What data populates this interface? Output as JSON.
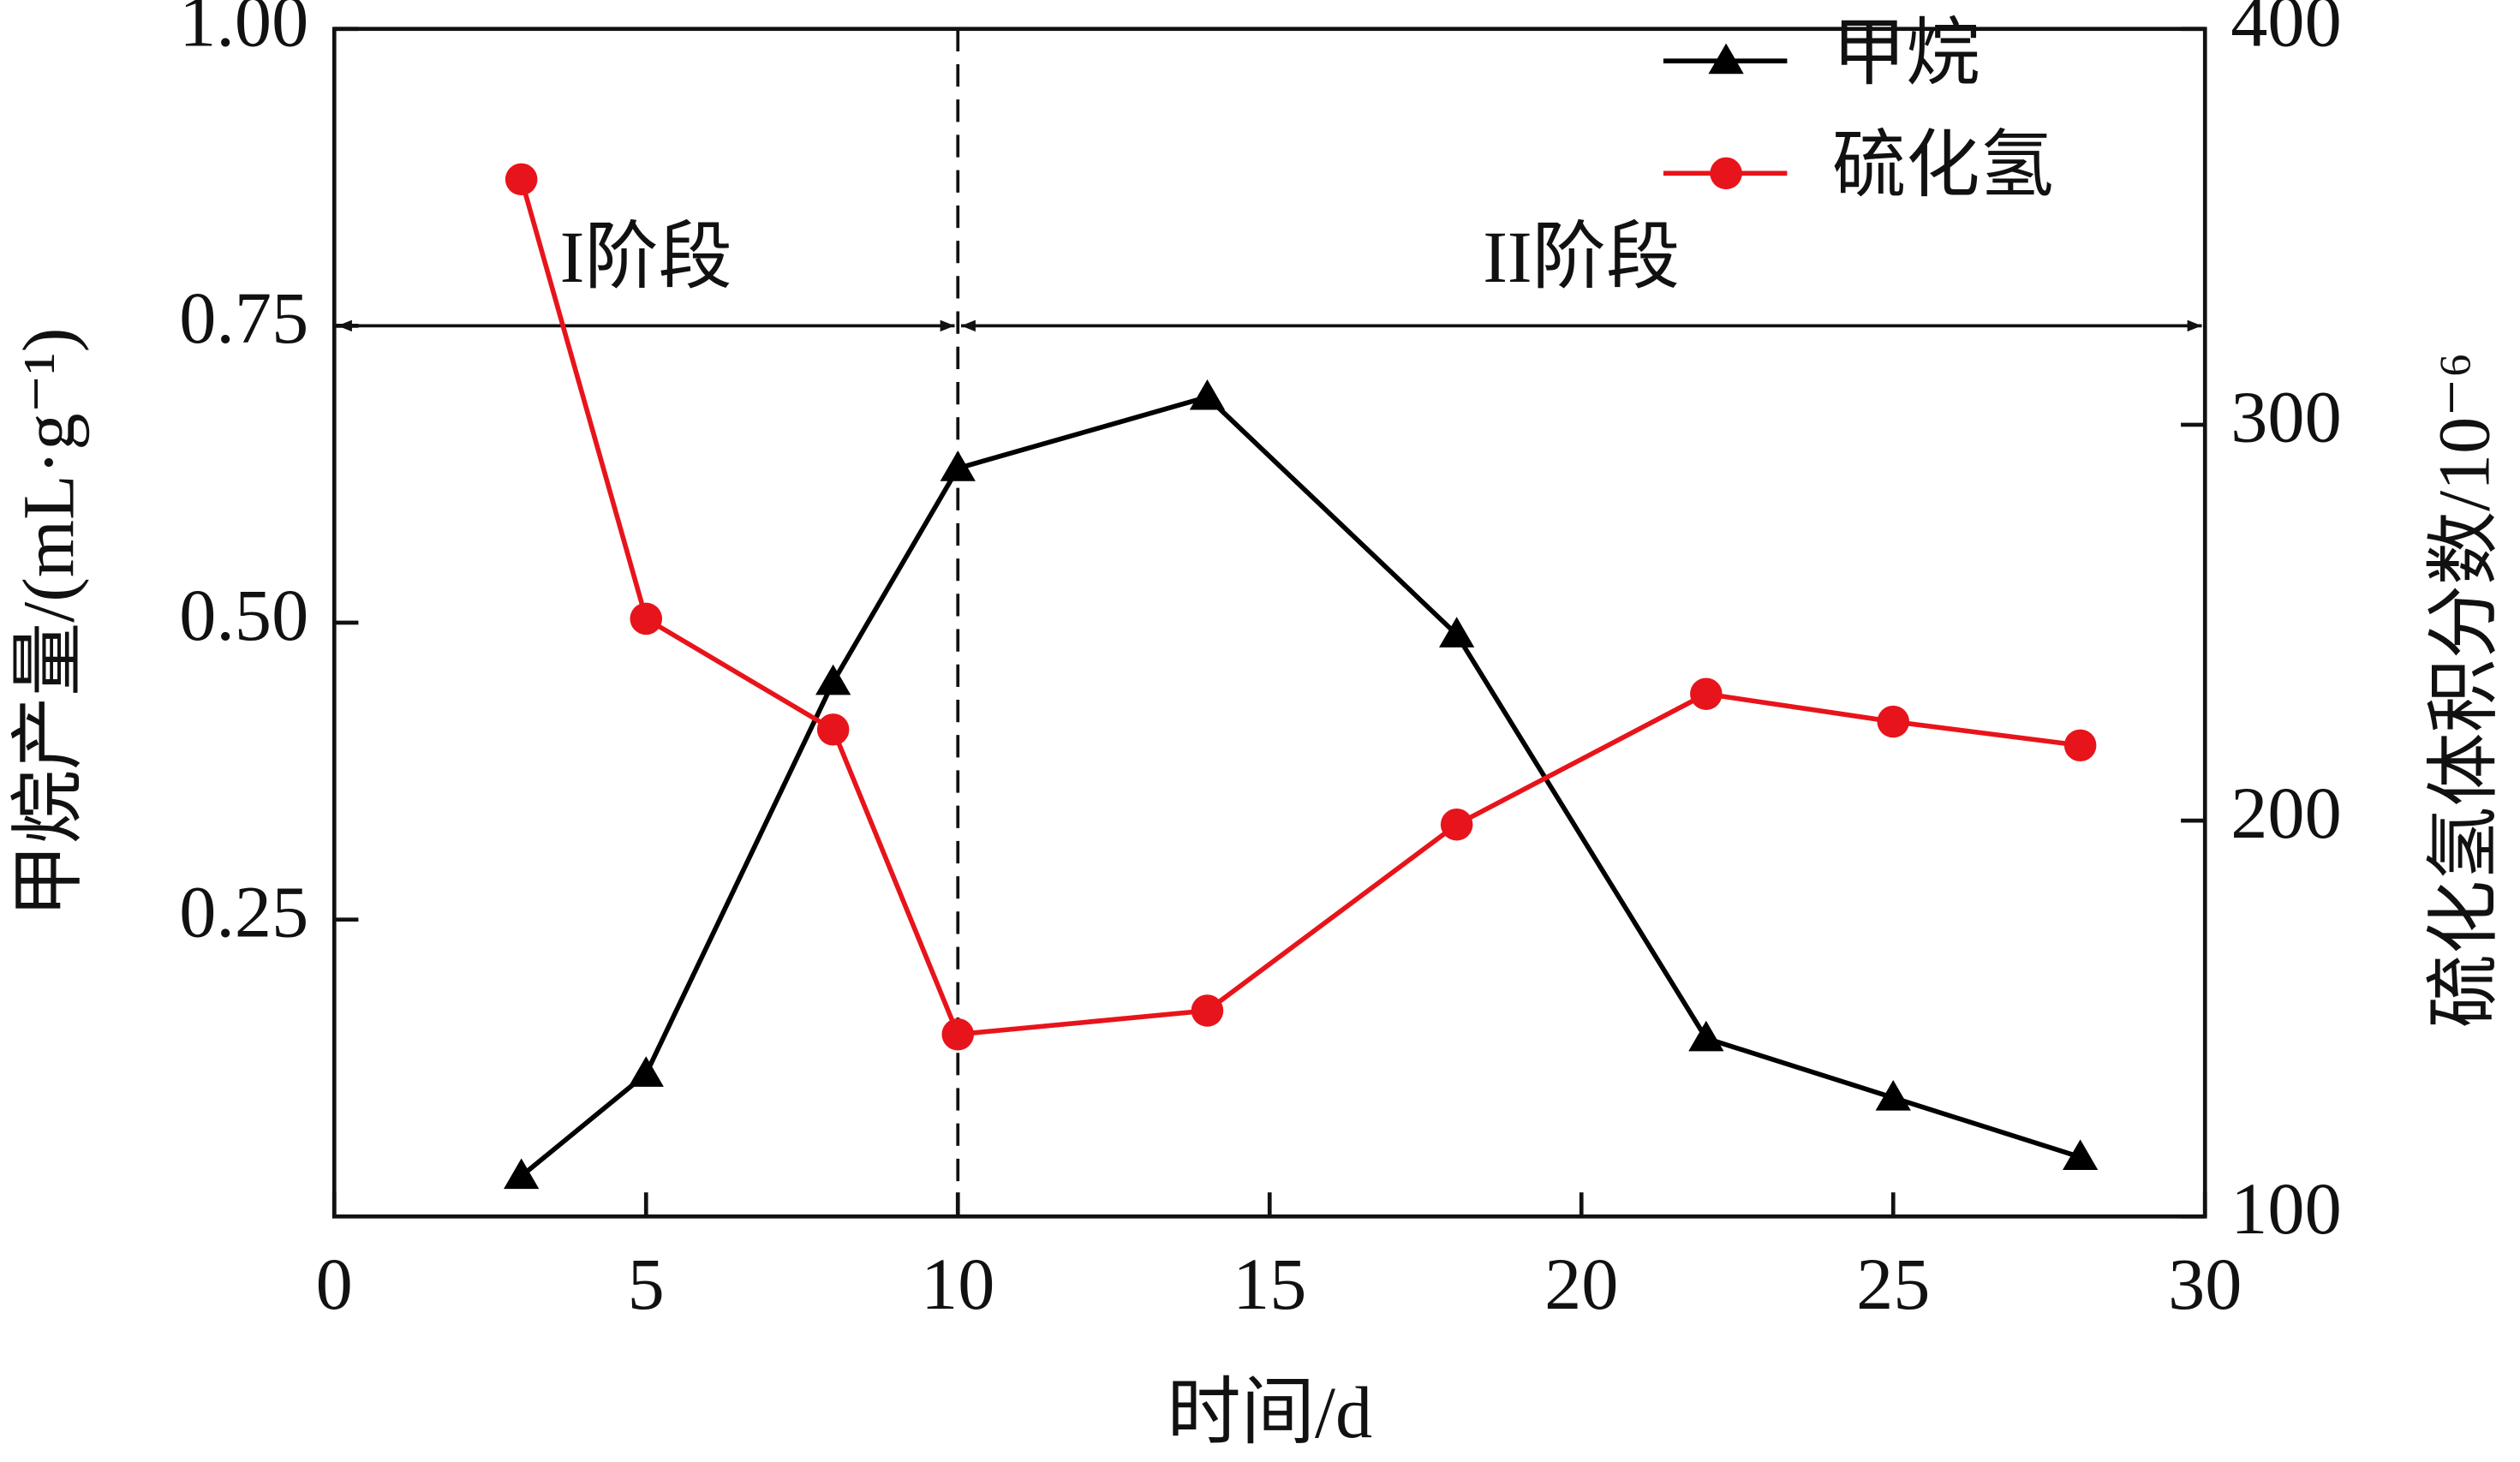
{
  "chart_data": {
    "type": "line",
    "x": [
      3,
      5,
      8,
      10,
      14,
      18,
      22,
      25,
      28
    ],
    "xlabel": "时间/d",
    "ylabel": "甲烷产量/(mL·g⁻¹)",
    "y2label": "硫化氢体积分数/10⁻⁶",
    "xlim": [
      0,
      30
    ],
    "xticks": [
      0,
      5,
      10,
      15,
      20,
      25,
      30
    ],
    "ylim": [
      0,
      1
    ],
    "yticks": [
      {
        "value": 0.25,
        "label": "0.25"
      },
      {
        "value": 0.5,
        "label": "0.50"
      },
      {
        "value": 0.75,
        "label": "0.75"
      },
      {
        "value": 1,
        "label": "1.00"
      }
    ],
    "y2lim": [
      100,
      400
    ],
    "y2ticks": [
      100,
      200,
      300,
      400
    ],
    "legend": "upper right",
    "series": [
      {
        "name": "甲烷",
        "color": "#000000",
        "marker": "triangle",
        "values": [
          0.034,
          0.12,
          0.45,
          0.63,
          0.69,
          0.49,
          0.15,
          0.1,
          0.05
        ]
      },
      {
        "name": "硫化氢",
        "color": "#e8141b",
        "marker": "circle",
        "axis": "y2",
        "values": [
          362,
          251,
          223,
          146,
          152,
          199,
          232,
          225,
          219
        ]
      }
    ],
    "annotations": [
      {
        "text": "I阶段",
        "x": [
          0,
          10
        ]
      },
      {
        "text": "II阶段",
        "x": [
          10,
          30
        ]
      }
    ]
  }
}
